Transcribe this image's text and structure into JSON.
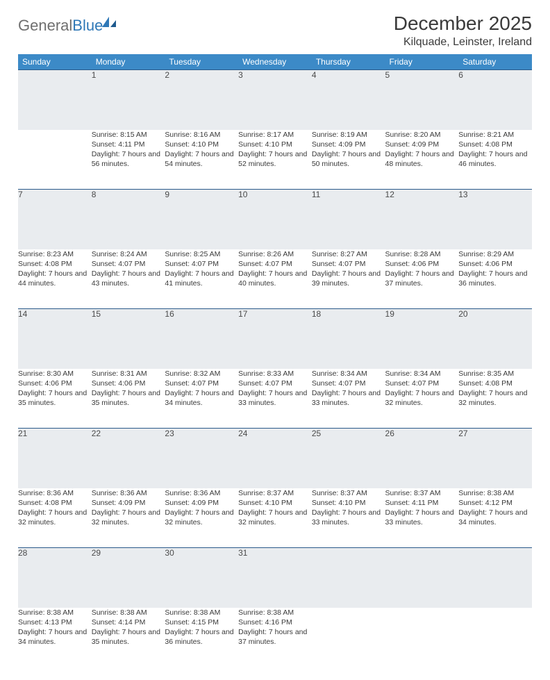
{
  "logo": {
    "word1": "General",
    "word2": "Blue"
  },
  "header": {
    "title": "December 2025",
    "location": "Kilquade, Leinster, Ireland"
  },
  "colors": {
    "header_bg": "#3c8ac7",
    "header_text": "#ffffff",
    "daynum_bg": "#e9ecef",
    "row_divider": "#2a5a8a",
    "body_text": "#3a3a3a",
    "logo_gray": "#6f6f6f",
    "logo_blue": "#2f78b7",
    "page_bg": "#ffffff"
  },
  "table": {
    "column_headers": [
      "Sunday",
      "Monday",
      "Tuesday",
      "Wednesday",
      "Thursday",
      "Friday",
      "Saturday"
    ],
    "header_fontsize": 12,
    "daynum_fontsize": 12,
    "cell_fontsize": 10.5,
    "weeks": [
      [
        null,
        {
          "n": "1",
          "sunrise": "8:15 AM",
          "sunset": "4:11 PM",
          "daylight": "7 hours and 56 minutes."
        },
        {
          "n": "2",
          "sunrise": "8:16 AM",
          "sunset": "4:10 PM",
          "daylight": "7 hours and 54 minutes."
        },
        {
          "n": "3",
          "sunrise": "8:17 AM",
          "sunset": "4:10 PM",
          "daylight": "7 hours and 52 minutes."
        },
        {
          "n": "4",
          "sunrise": "8:19 AM",
          "sunset": "4:09 PM",
          "daylight": "7 hours and 50 minutes."
        },
        {
          "n": "5",
          "sunrise": "8:20 AM",
          "sunset": "4:09 PM",
          "daylight": "7 hours and 48 minutes."
        },
        {
          "n": "6",
          "sunrise": "8:21 AM",
          "sunset": "4:08 PM",
          "daylight": "7 hours and 46 minutes."
        }
      ],
      [
        {
          "n": "7",
          "sunrise": "8:23 AM",
          "sunset": "4:08 PM",
          "daylight": "7 hours and 44 minutes."
        },
        {
          "n": "8",
          "sunrise": "8:24 AM",
          "sunset": "4:07 PM",
          "daylight": "7 hours and 43 minutes."
        },
        {
          "n": "9",
          "sunrise": "8:25 AM",
          "sunset": "4:07 PM",
          "daylight": "7 hours and 41 minutes."
        },
        {
          "n": "10",
          "sunrise": "8:26 AM",
          "sunset": "4:07 PM",
          "daylight": "7 hours and 40 minutes."
        },
        {
          "n": "11",
          "sunrise": "8:27 AM",
          "sunset": "4:07 PM",
          "daylight": "7 hours and 39 minutes."
        },
        {
          "n": "12",
          "sunrise": "8:28 AM",
          "sunset": "4:06 PM",
          "daylight": "7 hours and 37 minutes."
        },
        {
          "n": "13",
          "sunrise": "8:29 AM",
          "sunset": "4:06 PM",
          "daylight": "7 hours and 36 minutes."
        }
      ],
      [
        {
          "n": "14",
          "sunrise": "8:30 AM",
          "sunset": "4:06 PM",
          "daylight": "7 hours and 35 minutes."
        },
        {
          "n": "15",
          "sunrise": "8:31 AM",
          "sunset": "4:06 PM",
          "daylight": "7 hours and 35 minutes."
        },
        {
          "n": "16",
          "sunrise": "8:32 AM",
          "sunset": "4:07 PM",
          "daylight": "7 hours and 34 minutes."
        },
        {
          "n": "17",
          "sunrise": "8:33 AM",
          "sunset": "4:07 PM",
          "daylight": "7 hours and 33 minutes."
        },
        {
          "n": "18",
          "sunrise": "8:34 AM",
          "sunset": "4:07 PM",
          "daylight": "7 hours and 33 minutes."
        },
        {
          "n": "19",
          "sunrise": "8:34 AM",
          "sunset": "4:07 PM",
          "daylight": "7 hours and 32 minutes."
        },
        {
          "n": "20",
          "sunrise": "8:35 AM",
          "sunset": "4:08 PM",
          "daylight": "7 hours and 32 minutes."
        }
      ],
      [
        {
          "n": "21",
          "sunrise": "8:36 AM",
          "sunset": "4:08 PM",
          "daylight": "7 hours and 32 minutes."
        },
        {
          "n": "22",
          "sunrise": "8:36 AM",
          "sunset": "4:09 PM",
          "daylight": "7 hours and 32 minutes."
        },
        {
          "n": "23",
          "sunrise": "8:36 AM",
          "sunset": "4:09 PM",
          "daylight": "7 hours and 32 minutes."
        },
        {
          "n": "24",
          "sunrise": "8:37 AM",
          "sunset": "4:10 PM",
          "daylight": "7 hours and 32 minutes."
        },
        {
          "n": "25",
          "sunrise": "8:37 AM",
          "sunset": "4:10 PM",
          "daylight": "7 hours and 33 minutes."
        },
        {
          "n": "26",
          "sunrise": "8:37 AM",
          "sunset": "4:11 PM",
          "daylight": "7 hours and 33 minutes."
        },
        {
          "n": "27",
          "sunrise": "8:38 AM",
          "sunset": "4:12 PM",
          "daylight": "7 hours and 34 minutes."
        }
      ],
      [
        {
          "n": "28",
          "sunrise": "8:38 AM",
          "sunset": "4:13 PM",
          "daylight": "7 hours and 34 minutes."
        },
        {
          "n": "29",
          "sunrise": "8:38 AM",
          "sunset": "4:14 PM",
          "daylight": "7 hours and 35 minutes."
        },
        {
          "n": "30",
          "sunrise": "8:38 AM",
          "sunset": "4:15 PM",
          "daylight": "7 hours and 36 minutes."
        },
        {
          "n": "31",
          "sunrise": "8:38 AM",
          "sunset": "4:16 PM",
          "daylight": "7 hours and 37 minutes."
        },
        null,
        null,
        null
      ]
    ],
    "labels": {
      "sunrise": "Sunrise:",
      "sunset": "Sunset:",
      "daylight": "Daylight:"
    }
  }
}
